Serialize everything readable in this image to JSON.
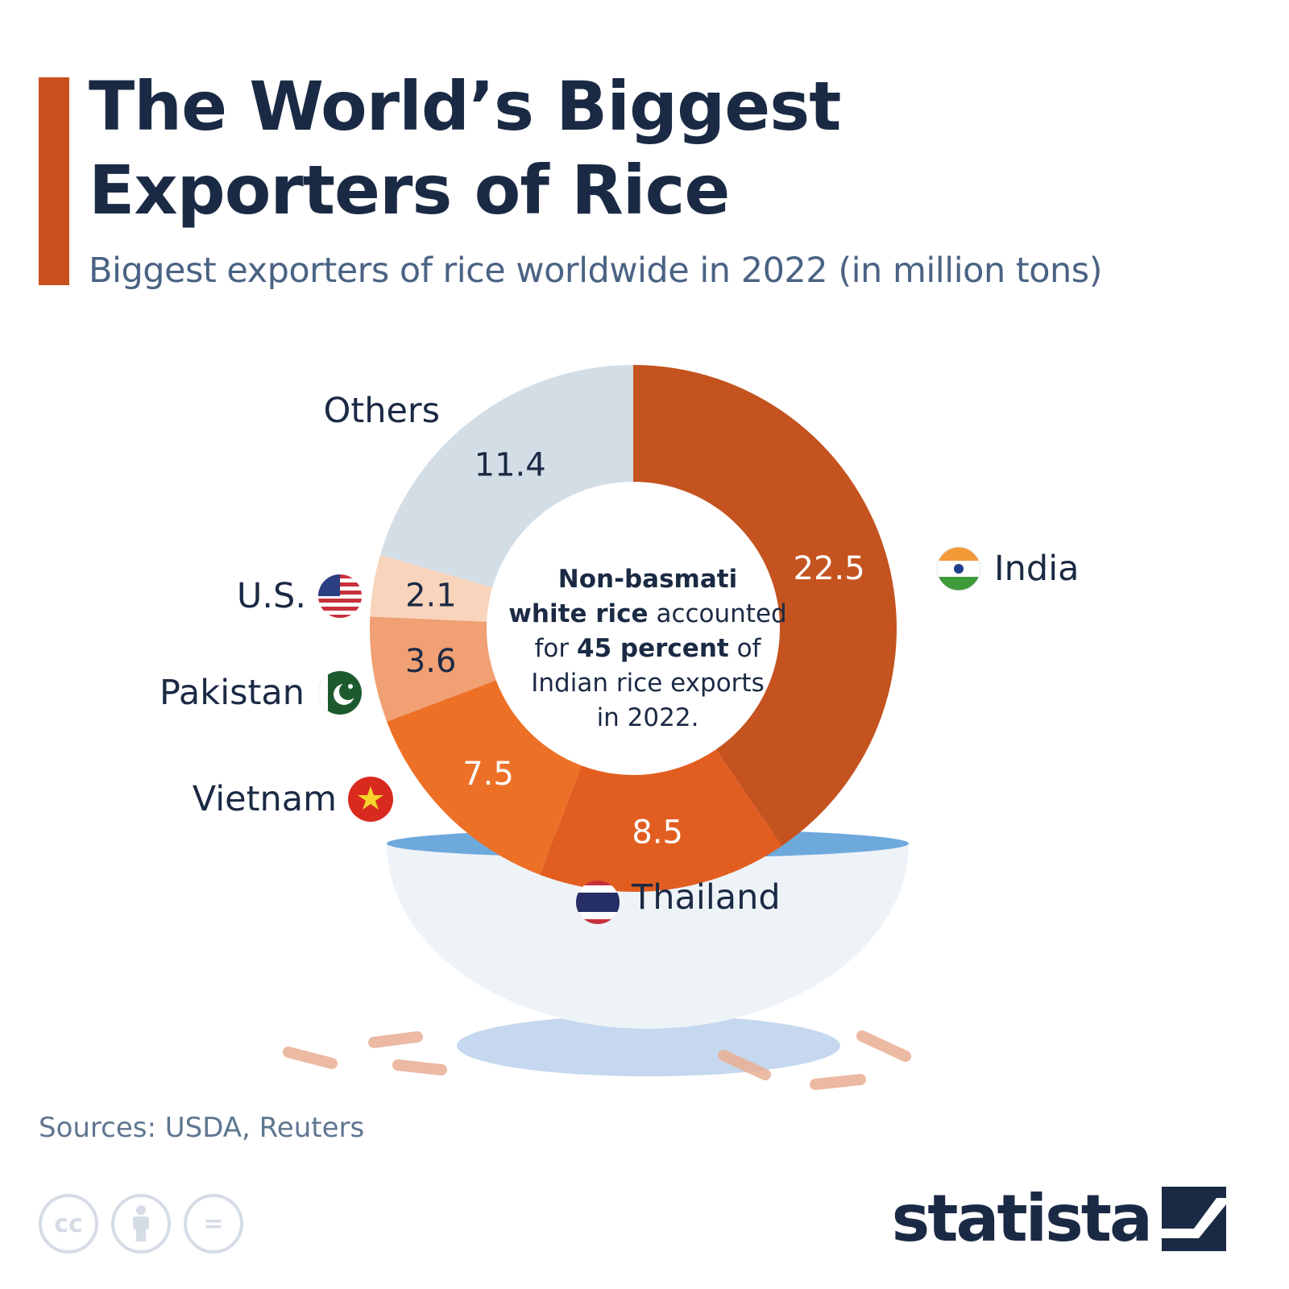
{
  "header": {
    "title": "The World’s Biggest Exporters of Rice",
    "subtitle": "Biggest exporters of rice worldwide in 2022 (in million tons)"
  },
  "colors": {
    "accent": "#c9511f",
    "india": "#c4531f",
    "thailand": "#e25e20",
    "vietnam": "#ed7027",
    "pakistan": "#f0a073",
    "us": "#f8d4bd",
    "others": "#d3dde6",
    "title_text": "#1b2a44",
    "subtitle_text": "#4a6384"
  },
  "chart_data": {
    "type": "pie",
    "variant": "donut",
    "title": "The World’s Biggest Exporters of Rice",
    "subtitle": "Biggest exporters of rice worldwide in 2022 (in million tons)",
    "unit": "million tons",
    "categories": [
      "India",
      "Thailand",
      "Vietnam",
      "Pakistan",
      "U.S.",
      "Others"
    ],
    "values": [
      22.5,
      8.5,
      7.5,
      3.6,
      2.1,
      11.4
    ],
    "value_labels": [
      "22.5",
      "8.5",
      "7.5",
      "3.6",
      "2.1",
      "11.4"
    ],
    "flags": [
      "india-flag-icon",
      "thailand-flag-icon",
      "vietnam-flag-icon",
      "pakistan-flag-icon",
      "us-flag-icon",
      ""
    ],
    "center_note": {
      "line1": "Non-basmati",
      "line2_bold": "white rice",
      "line2_rest": " accounted",
      "line3_a": "for ",
      "line3_bold": "45 percent",
      "line3_c": " of",
      "line4": "Indian rice exports",
      "line5": "in 2022."
    }
  },
  "footer": {
    "source": "Sources: USDA, Reuters",
    "license_icons": [
      "cc-icon",
      "attribution-icon",
      "no-derivatives-icon"
    ],
    "cc_text": "cc",
    "nd_text": "=",
    "brand": "statista"
  }
}
